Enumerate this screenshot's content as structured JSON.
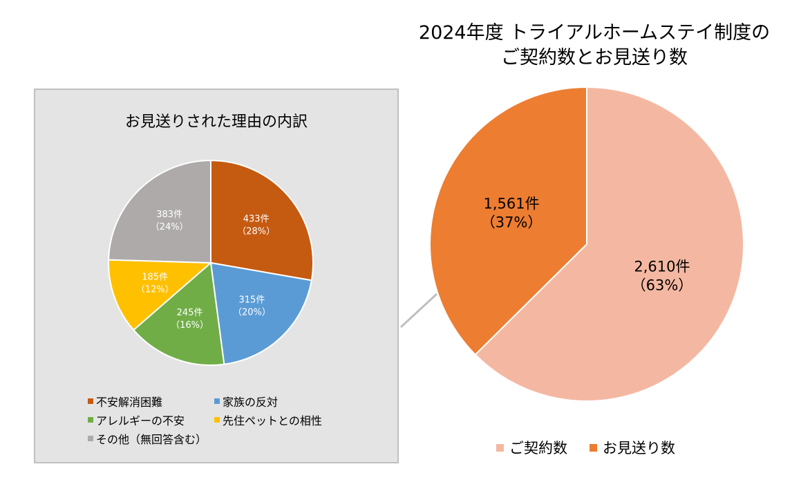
{
  "chart_data": [
    {
      "type": "pie",
      "title_lines": [
        "2024年度 トライアルホームステイ制度の",
        "ご契約数とお見送り数"
      ],
      "categories": [
        "ご契約数",
        "お見送り数"
      ],
      "values": [
        2610,
        1561
      ],
      "value_labels": [
        "2,610件",
        "1,561件"
      ],
      "percent_labels": [
        "（63%）",
        "（37%）"
      ],
      "colors": [
        "#f4b8a2",
        "#ed7d31"
      ],
      "legend_position": "bottom"
    },
    {
      "type": "pie",
      "title": "お見送りされた理由の内訳",
      "categories": [
        "不安解消困難",
        "家族の反対",
        "アレルギーの不安",
        "先住ペットとの相性",
        "その他（無回答含む）"
      ],
      "values": [
        433,
        315,
        245,
        185,
        383
      ],
      "value_labels": [
        "433件",
        "315件",
        "245件",
        "185件",
        "383件"
      ],
      "percent_labels": [
        "（28%）",
        "（20%）",
        "（16%）",
        "（12%）",
        "（24%）"
      ],
      "colors": [
        "#c55a11",
        "#5b9bd5",
        "#70ad47",
        "#ffc000",
        "#aeaaaa"
      ],
      "legend_position": "bottom"
    }
  ]
}
